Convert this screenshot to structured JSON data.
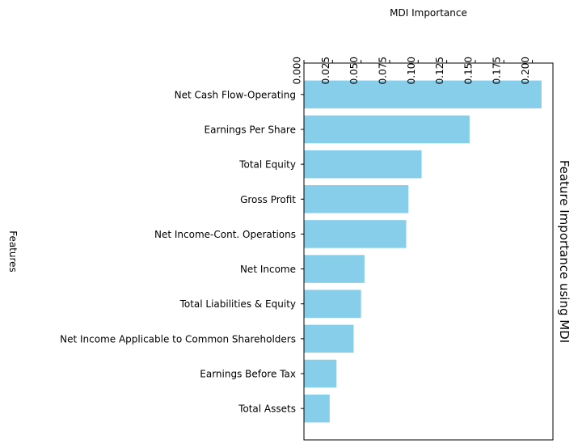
{
  "chart_data": {
    "type": "bar",
    "orientation": "horizontal",
    "title": "Feature Importance using MDI",
    "title_placement": "right-rotated",
    "xlabel": "MDI Importance",
    "xlabel_placement": "top",
    "ylabel": "Features",
    "xlim": [
      0,
      0.218
    ],
    "x_ticks": [
      0.0,
      0.025,
      0.05,
      0.075,
      0.1,
      0.125,
      0.15,
      0.175,
      0.2
    ],
    "x_tick_labels": [
      "0.000",
      "0.025",
      "0.050",
      "0.075",
      "0.100",
      "0.125",
      "0.150",
      "0.175",
      "0.200"
    ],
    "categories": [
      "Net Cash Flow-Operating",
      "Earnings Per Share",
      "Total Equity",
      "Gross Profit",
      "Net Income-Cont. Operations",
      "Net Income",
      "Total Liabilities & Equity",
      "Net Income Applicable to Common Shareholders",
      "Earnings Before Tax",
      "Total Assets"
    ],
    "values": [
      0.208,
      0.145,
      0.103,
      0.0915,
      0.0895,
      0.053,
      0.05,
      0.0435,
      0.0285,
      0.0225
    ],
    "bar_color": "#87ceeb",
    "grid": false
  }
}
